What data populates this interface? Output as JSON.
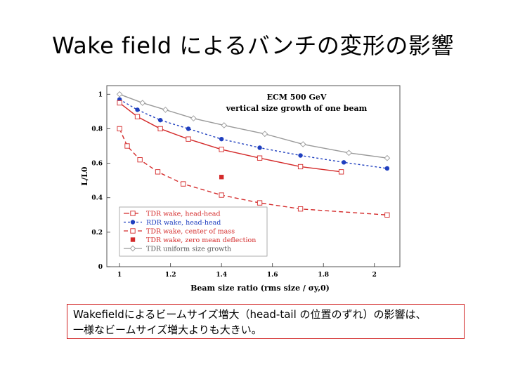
{
  "title": "Wake field によるバンチの変形の影響",
  "note": {
    "line1": "Wakefieldによるビームサイズ増大（head-tail の位置のずれ）の影響は、",
    "line2": "一様なビームサイズ増大よりも大きい。"
  },
  "chart_data": {
    "type": "line",
    "title": "ECM 500 GeV",
    "subtitle": "vertical size growth of one beam",
    "xlabel": "Beam size ratio (rms size / σy,0)",
    "ylabel": "L/L0",
    "xlim": [
      0.95,
      2.1
    ],
    "ylim": [
      0,
      1.05
    ],
    "xticks": [
      1,
      1.2,
      1.4,
      1.6,
      1.8,
      2
    ],
    "xtick_labels": [
      "1",
      "1.2",
      "1.4",
      "1.6",
      "1.8",
      "2"
    ],
    "yticks": [
      0,
      0.2,
      0.4,
      0.6,
      0.8,
      1
    ],
    "ytick_labels": [
      "0",
      "0.2",
      "0.4",
      "0.6",
      "0.8",
      "1"
    ],
    "legend_position": "bottom-left",
    "series": [
      {
        "name": "TDR wake, head-head",
        "color": "#d42a2a",
        "marker": "open-square",
        "dash": "8,5",
        "line": false,
        "x": [],
        "y": []
      },
      {
        "name": "RDR wake, head-head",
        "color": "#1f3fbf",
        "marker": "filled-circle",
        "dash": "3,3",
        "line": true,
        "x": [
          1.0,
          1.07,
          1.16,
          1.27,
          1.4,
          1.55,
          1.71,
          1.88,
          2.05
        ],
        "y": [
          0.97,
          0.91,
          0.85,
          0.8,
          0.74,
          0.69,
          0.645,
          0.605,
          0.57
        ]
      },
      {
        "name": "TDR wake, center of mass",
        "color": "#d42a2a",
        "marker": "open-square",
        "dash": "6,4",
        "line": true,
        "x": [
          1.0,
          1.03,
          1.08,
          1.15,
          1.25,
          1.4,
          1.55,
          1.71,
          2.05
        ],
        "y": [
          0.8,
          0.7,
          0.62,
          0.55,
          0.48,
          0.415,
          0.37,
          0.335,
          0.3
        ]
      },
      {
        "name": "TDR wake, zero mean deflection",
        "color": "#d42a2a",
        "marker": "filled-square",
        "dash": "",
        "line": false,
        "x": [
          1.4
        ],
        "y": [
          0.52
        ]
      },
      {
        "name": "TDR uniform size growth",
        "color": "#9a9a9a",
        "marker": "open-diamond",
        "dash": "",
        "line": true,
        "x": [
          1.0,
          1.09,
          1.18,
          1.29,
          1.41,
          1.57,
          1.72,
          1.9,
          2.05
        ],
        "y": [
          1.0,
          0.95,
          0.91,
          0.86,
          0.82,
          0.77,
          0.71,
          0.66,
          0.63
        ]
      },
      {
        "name": "",
        "color": "#d42a2a",
        "marker": "open-square",
        "dash": "",
        "line": true,
        "x": [
          1.0,
          1.07,
          1.16,
          1.27,
          1.4,
          1.55,
          1.71,
          1.87
        ],
        "y": [
          0.95,
          0.87,
          0.8,
          0.74,
          0.68,
          0.63,
          0.58,
          0.55
        ]
      }
    ]
  }
}
